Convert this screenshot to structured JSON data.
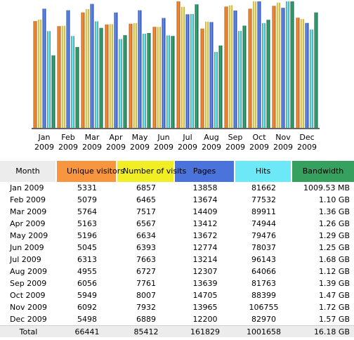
{
  "colors": {
    "unique_visitors": "#f7963e",
    "number_of_visits": "#f2ee24",
    "pages": "#4a73dc",
    "hits": "#6ce8f7",
    "bandwidth": "#36a05e",
    "header_grey": "#ececec"
  },
  "chart_data": {
    "type": "bar",
    "categories": [
      [
        "Jan",
        "2009"
      ],
      [
        "Feb",
        "2009"
      ],
      [
        "Mar",
        "2009"
      ],
      [
        "Apr",
        "2009"
      ],
      [
        "May",
        "2009"
      ],
      [
        "Jun",
        "2009"
      ],
      [
        "Jul",
        "2009"
      ],
      [
        "Aug",
        "2009"
      ],
      [
        "Sep",
        "2009"
      ],
      [
        "Oct",
        "2009"
      ],
      [
        "Nov",
        "2009"
      ],
      [
        "Dec",
        "2009"
      ]
    ],
    "series": [
      {
        "name": "Unique visitors",
        "color": "#f7963e",
        "values": [
          5331,
          5079,
          5764,
          5163,
          5196,
          5045,
          6313,
          4955,
          6056,
          5949,
          6092,
          5498
        ]
      },
      {
        "name": "Number of visits",
        "color": "#f2ee24",
        "values": [
          6857,
          6465,
          7517,
          6567,
          6634,
          6393,
          7663,
          6727,
          7761,
          8007,
          7932,
          6889
        ]
      },
      {
        "name": "Pages",
        "color": "#4a73dc",
        "values": [
          13858,
          13674,
          14409,
          13412,
          13672,
          12774,
          13214,
          12307,
          13639,
          14705,
          13965,
          12200
        ]
      },
      {
        "name": "Hits",
        "color": "#6ce8f7",
        "values": [
          81662,
          77532,
          89911,
          74944,
          79476,
          78037,
          96143,
          64066,
          81763,
          88399,
          106755,
          82970
        ]
      },
      {
        "name": "Bandwidth",
        "color": "#36a05e",
        "values": [
          1009.53,
          1126.4,
          1392.64,
          1290.24,
          1320.96,
          1280,
          1720.32,
          1146.88,
          1423.36,
          1505.28,
          1761.28,
          1607.68
        ]
      }
    ],
    "legend": "none",
    "grid": false
  },
  "table": {
    "headers": {
      "month": "Month",
      "unique": "Unique visitors",
      "visits": "Number of visits",
      "pages": "Pages",
      "hits": "Hits",
      "bandwidth": "Bandwidth"
    },
    "rows": [
      {
        "month": "Jan 2009",
        "unique": "5331",
        "visits": "6857",
        "pages": "13858",
        "hits": "81662",
        "bandwidth": "1009.53 MB"
      },
      {
        "month": "Feb 2009",
        "unique": "5079",
        "visits": "6465",
        "pages": "13674",
        "hits": "77532",
        "bandwidth": "1.10 GB"
      },
      {
        "month": "Mar 2009",
        "unique": "5764",
        "visits": "7517",
        "pages": "14409",
        "hits": "89911",
        "bandwidth": "1.36 GB"
      },
      {
        "month": "Apr 2009",
        "unique": "5163",
        "visits": "6567",
        "pages": "13412",
        "hits": "74944",
        "bandwidth": "1.26 GB"
      },
      {
        "month": "May 2009",
        "unique": "5196",
        "visits": "6634",
        "pages": "13672",
        "hits": "79476",
        "bandwidth": "1.29 GB"
      },
      {
        "month": "Jun 2009",
        "unique": "5045",
        "visits": "6393",
        "pages": "12774",
        "hits": "78037",
        "bandwidth": "1.25 GB"
      },
      {
        "month": "Jul 2009",
        "unique": "6313",
        "visits": "7663",
        "pages": "13214",
        "hits": "96143",
        "bandwidth": "1.68 GB"
      },
      {
        "month": "Aug 2009",
        "unique": "4955",
        "visits": "6727",
        "pages": "12307",
        "hits": "64066",
        "bandwidth": "1.12 GB"
      },
      {
        "month": "Sep 2009",
        "unique": "6056",
        "visits": "7761",
        "pages": "13639",
        "hits": "81763",
        "bandwidth": "1.39 GB"
      },
      {
        "month": "Oct 2009",
        "unique": "5949",
        "visits": "8007",
        "pages": "14705",
        "hits": "88399",
        "bandwidth": "1.47 GB"
      },
      {
        "month": "Nov 2009",
        "unique": "6092",
        "visits": "7932",
        "pages": "13965",
        "hits": "106755",
        "bandwidth": "1.72 GB"
      },
      {
        "month": "Dec 2009",
        "unique": "5498",
        "visits": "6889",
        "pages": "12200",
        "hits": "82970",
        "bandwidth": "1.57 GB"
      }
    ],
    "total": {
      "month": "Total",
      "unique": "66441",
      "visits": "85412",
      "pages": "161829",
      "hits": "1001658",
      "bandwidth": "16.18 GB"
    }
  }
}
